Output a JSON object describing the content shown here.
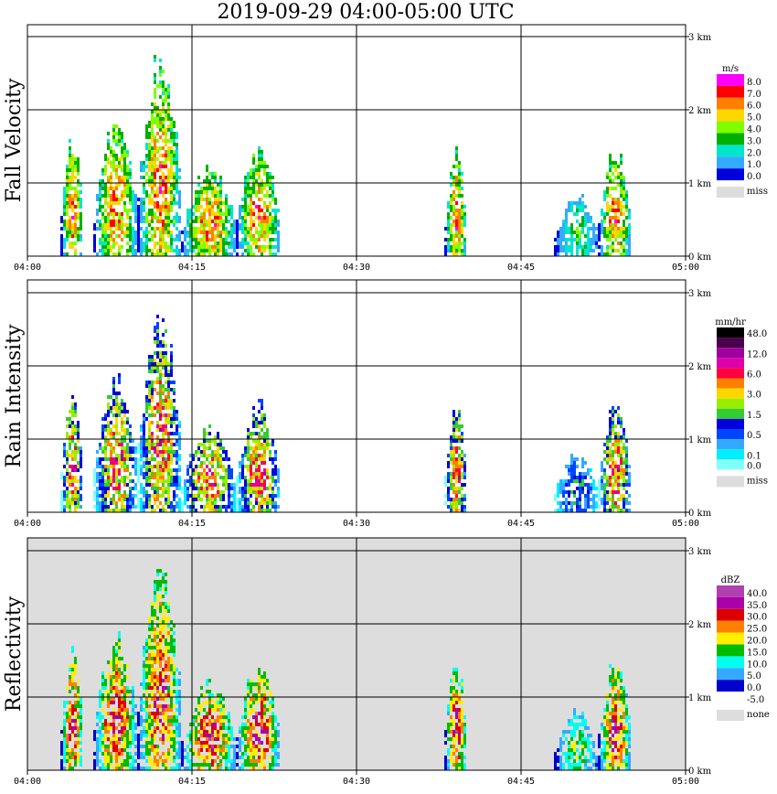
{
  "chart_data": {
    "type": "heatmap",
    "title": "2019-09-29  04:00-05:00 UTC",
    "x_ticks": [
      "04:00",
      "04:15",
      "04:30",
      "04:45",
      "05:00"
    ],
    "y_ticks": [
      "0 km",
      "1 km",
      "2 km",
      "3 km"
    ],
    "ylim_km": [
      0,
      3
    ],
    "grid": true,
    "legend_position": "right",
    "panels": [
      {
        "label": "Fall Velocity",
        "unit": "m/s",
        "missing_label": "miss",
        "background": "white",
        "legend": [
          {
            "label": "8.0",
            "color": "#ff00ff"
          },
          {
            "label": "7.0",
            "color": "#ff0000"
          },
          {
            "label": "6.0",
            "color": "#ff7f00"
          },
          {
            "label": "5.0",
            "color": "#ffd700"
          },
          {
            "label": "4.0",
            "color": "#7fff00"
          },
          {
            "label": "3.0",
            "color": "#00b000"
          },
          {
            "label": "2.0",
            "color": "#00e5cc"
          },
          {
            "label": "1.0",
            "color": "#33aaff"
          },
          {
            "label": "0.0",
            "color": "#0000dd"
          }
        ]
      },
      {
        "label": "Rain Intensity",
        "unit": "mm/hr",
        "missing_label": "miss",
        "background": "white",
        "legend": [
          {
            "label": "48.0",
            "color": "#000000"
          },
          {
            "label": "",
            "color": "#4a004a"
          },
          {
            "label": "12.0",
            "color": "#9e009e"
          },
          {
            "label": "",
            "color": "#dd00aa"
          },
          {
            "label": "6.0",
            "color": "#ff0040"
          },
          {
            "label": "",
            "color": "#ff8000"
          },
          {
            "label": "3.0",
            "color": "#ffd700"
          },
          {
            "label": "",
            "color": "#99ee00"
          },
          {
            "label": "1.5",
            "color": "#33cc33"
          },
          {
            "label": "",
            "color": "#0000dd"
          },
          {
            "label": "0.5",
            "color": "#0044ff"
          },
          {
            "label": "",
            "color": "#33aaff"
          },
          {
            "label": "0.1",
            "color": "#00eeff"
          },
          {
            "label": "0.0",
            "color": "#80ffff"
          }
        ]
      },
      {
        "label": "Reflectivity",
        "unit": "dBZ",
        "missing_label": "none",
        "background": "#dddddd",
        "legend": [
          {
            "label": "40.0",
            "color": "#b040b0"
          },
          {
            "label": "35.0",
            "color": "#aa00aa"
          },
          {
            "label": "30.0",
            "color": "#dd0000"
          },
          {
            "label": "25.0",
            "color": "#ff7f00"
          },
          {
            "label": "20.0",
            "color": "#ffee00"
          },
          {
            "label": "15.0",
            "color": "#00bb00"
          },
          {
            "label": "10.0",
            "color": "#00ffee"
          },
          {
            "label": "5.0",
            "color": "#33aaff"
          },
          {
            "label": "0.0",
            "color": "#0000cc"
          },
          {
            "label": "-5.0",
            "color": "#ffffff"
          }
        ]
      }
    ],
    "echoes": [
      {
        "t_start": "04:03",
        "t_end": "04:05",
        "top_km": 1.8
      },
      {
        "t_start": "04:06",
        "t_end": "04:10",
        "top_km": 2.0
      },
      {
        "t_start": "04:10",
        "t_end": "04:14",
        "top_km": 2.9
      },
      {
        "t_start": "04:14",
        "t_end": "04:19",
        "top_km": 1.3
      },
      {
        "t_start": "04:19",
        "t_end": "04:23",
        "top_km": 1.6
      },
      {
        "t_start": "04:38",
        "t_end": "04:40",
        "top_km": 1.6
      },
      {
        "t_start": "04:48",
        "t_end": "04:52",
        "top_km": 0.9
      },
      {
        "t_start": "04:52",
        "t_end": "04:55",
        "top_km": 1.6
      }
    ]
  }
}
